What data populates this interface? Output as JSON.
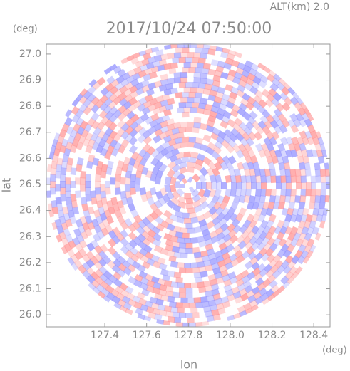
{
  "chart_data": {
    "type": "radar_ppi",
    "title": "2017/10/24 07:50:00",
    "subtitle": "ALT(km) 2.0",
    "y_unit": "(deg)",
    "x_unit": "(deg)",
    "xlabel": "lon",
    "ylabel": "lat",
    "xlim": [
      127.12,
      128.478
    ],
    "ylim": [
      25.954,
      27.038
    ],
    "xticks": [
      127.4,
      127.6,
      127.8,
      {
        "value": 128.0,
        "label": "128.0"
      },
      128.2,
      128.4
    ],
    "yticks": [
      {
        "value": 26.0,
        "label": "26.0"
      },
      26.1,
      26.2,
      26.3,
      26.4,
      26.5,
      26.6,
      26.7,
      26.8,
      26.9,
      {
        "value": 27.0,
        "label": "27.0"
      }
    ]
  }
}
